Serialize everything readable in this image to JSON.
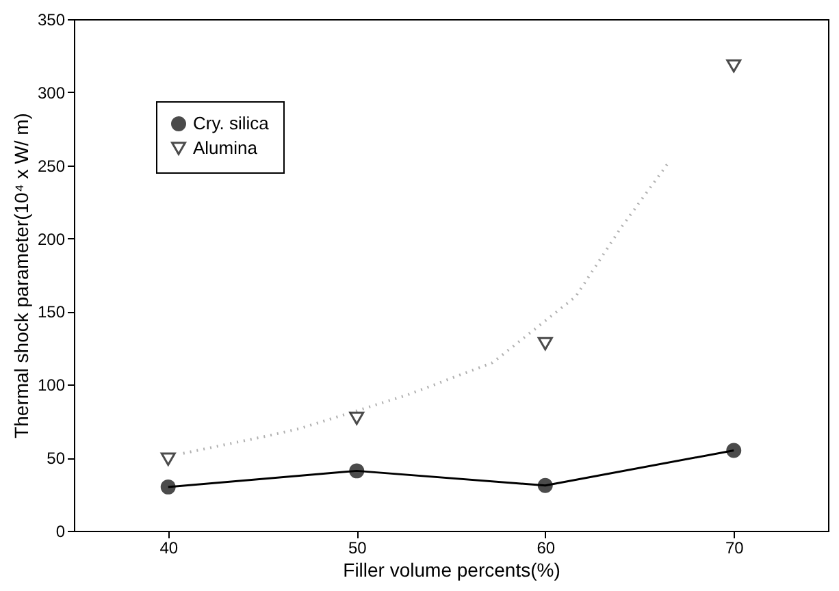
{
  "chart_data": {
    "type": "line",
    "xlabel": "Filler volume percents(%)",
    "ylabel": "Thermal shock parameter(10⁴ x W/ m)",
    "xlim": [
      35,
      75
    ],
    "xticks": [
      40,
      50,
      60,
      70
    ],
    "ylim": [
      0,
      350
    ],
    "yticks": [
      0,
      50,
      100,
      150,
      200,
      250,
      300,
      350
    ],
    "x": [
      40,
      50,
      60,
      70
    ],
    "series": [
      {
        "name": "Cry. silica",
        "type": "line",
        "color": "#000000",
        "marker": "circle",
        "line_style": "solid",
        "values": [
          30,
          41,
          31,
          55
        ]
      },
      {
        "name": "Alumina",
        "type": "scatter",
        "color": "#000000",
        "marker": "triangle",
        "values": [
          49,
          77,
          128,
          318
        ]
      },
      {
        "type": "line",
        "color": "#b0b0b0",
        "line_style": "dotted",
        "marker": "none",
        "x": [
          40.8,
          45.3,
          47,
          52.7,
          57.2,
          61.6,
          64,
          66.6
        ],
        "values": [
          53,
          65,
          70,
          93,
          115,
          160,
          207,
          253
        ]
      }
    ],
    "grid": false,
    "legend": "top left"
  }
}
